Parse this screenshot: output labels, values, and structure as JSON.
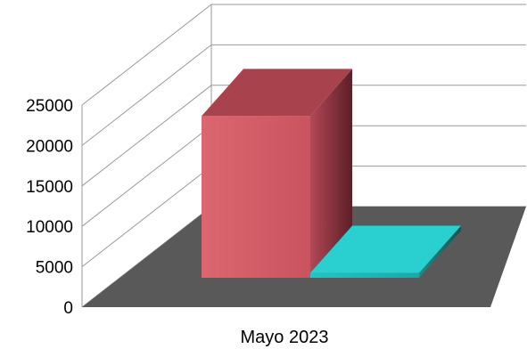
{
  "chart_data": {
    "type": "bar",
    "style": "3d-column",
    "categories": [
      "Mayo 2023"
    ],
    "series": [
      {
        "values": [
          20000
        ],
        "color": "#d45f6a"
      },
      {
        "values": [
          600
        ],
        "color": "#1fb5b5"
      }
    ],
    "ylim": [
      0,
      25000
    ],
    "yticks": [
      0,
      5000,
      10000,
      15000,
      20000,
      25000
    ],
    "grid": true,
    "floor_color": "#595959"
  }
}
